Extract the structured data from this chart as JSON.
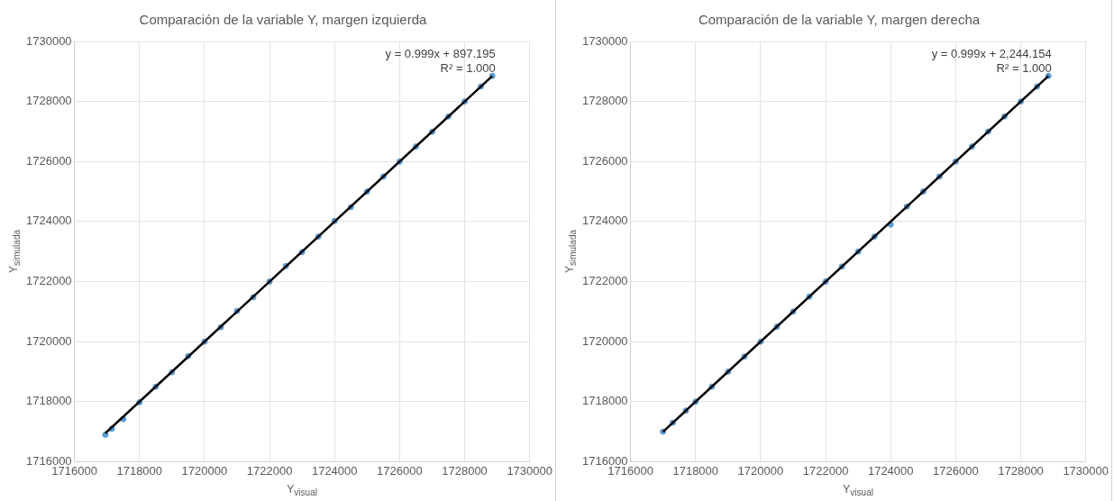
{
  "chart_data": [
    {
      "type": "scatter",
      "title": "Comparación de la variable Y, margen izquierda",
      "xlabel": "Y$_{visual}$",
      "ylabel": "Y$_{simulada}$",
      "annotations": [
        "y = 0.999x + 897.195",
        "R² = 1.000"
      ],
      "xlim": [
        1716000,
        1730000
      ],
      "ylim": [
        1716000,
        1730000
      ],
      "xticks": [
        1716000,
        1718000,
        1720000,
        1722000,
        1724000,
        1726000,
        1728000,
        1730000
      ],
      "yticks": [
        1716000,
        1718000,
        1720000,
        1722000,
        1724000,
        1726000,
        1728000,
        1730000
      ],
      "grid": true,
      "series": [
        {
          "type": "scatter",
          "marker": "circle",
          "color": "#5b9bd5",
          "x": [
            1716950,
            1717150,
            1717500,
            1718000,
            1718500,
            1719000,
            1719500,
            1720000,
            1720500,
            1721000,
            1721500,
            1722000,
            1722500,
            1723000,
            1723500,
            1724000,
            1724500,
            1725000,
            1725500,
            1726000,
            1726500,
            1727000,
            1727500,
            1728000,
            1728500,
            1728850
          ],
          "values": [
            1716900,
            1717100,
            1717420,
            1717980,
            1718500,
            1718980,
            1719520,
            1720000,
            1720480,
            1721020,
            1721480,
            1722000,
            1722520,
            1722980,
            1723500,
            1724020,
            1724480,
            1725000,
            1725500,
            1726000,
            1726500,
            1726990,
            1727500,
            1728000,
            1728500,
            1728850
          ]
        },
        {
          "type": "line",
          "color": "#000000",
          "line_style": "solid",
          "x": [
            1716950,
            1728850
          ],
          "values": [
            1716950,
            1728850
          ]
        }
      ]
    },
    {
      "type": "scatter",
      "title": "Comparación de la variable Y, margen derecha",
      "xlabel": "Y$_{visual}$",
      "ylabel": "Y$_{simulada}$",
      "annotations": [
        "y = 0.999x + 2,244.154",
        "R² = 1.000"
      ],
      "xlim": [
        1716000,
        1730000
      ],
      "ylim": [
        1716000,
        1730000
      ],
      "xticks": [
        1716000,
        1718000,
        1720000,
        1722000,
        1724000,
        1726000,
        1728000,
        1730000
      ],
      "yticks": [
        1716000,
        1718000,
        1720000,
        1722000,
        1724000,
        1726000,
        1728000,
        1730000
      ],
      "grid": true,
      "series": [
        {
          "type": "scatter",
          "marker": "circle",
          "color": "#5b9bd5",
          "x": [
            1717000,
            1717300,
            1717700,
            1718000,
            1718500,
            1719000,
            1719500,
            1720000,
            1720500,
            1721000,
            1721500,
            1722000,
            1722500,
            1723000,
            1723500,
            1724000,
            1724500,
            1725000,
            1725500,
            1726000,
            1726500,
            1727000,
            1727500,
            1728000,
            1728500,
            1728850
          ],
          "values": [
            1717000,
            1717300,
            1717700,
            1718000,
            1718500,
            1719000,
            1719500,
            1720000,
            1720500,
            1721000,
            1721500,
            1722000,
            1722500,
            1723000,
            1723500,
            1723900,
            1724500,
            1725000,
            1725500,
            1726000,
            1726500,
            1727000,
            1727500,
            1728000,
            1728500,
            1728850
          ]
        },
        {
          "type": "line",
          "color": "#000000",
          "line_style": "solid",
          "x": [
            1717000,
            1728850
          ],
          "values": [
            1717000,
            1728850
          ]
        }
      ]
    }
  ]
}
